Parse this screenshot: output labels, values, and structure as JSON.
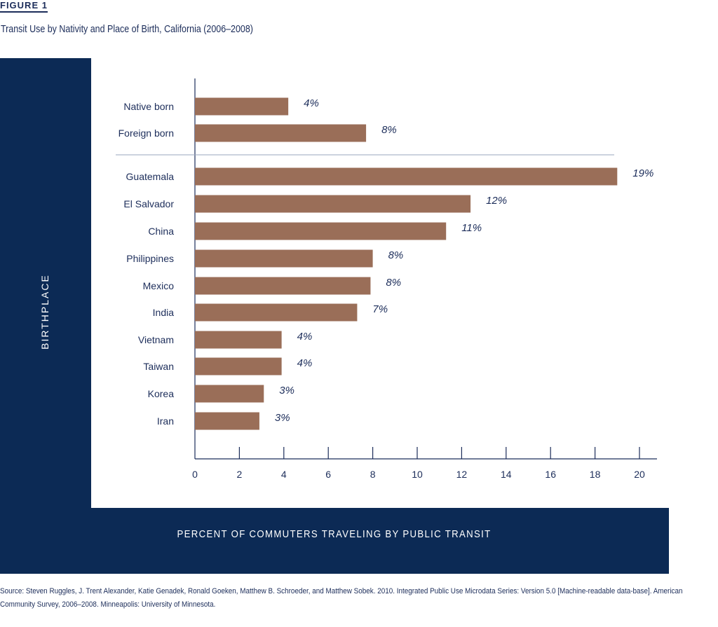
{
  "figure_label": "FIGURE 1",
  "title": "Transit Use by Nativity and Place of Birth, California (2006–2008)",
  "source": "Source: Steven Ruggles, J. Trent Alexander, Katie Genadek, Ronald Goeken, Matthew B. Schroeder, and Matthew Sobek. 2010. Integrated Public Use Microdata Series: Version 5.0 [Machine-readable data-base]. American Community Survey, 2006–2008. Minneapolis: University of Minnesota.",
  "colors": {
    "frame": "#0c2a55",
    "bar": "#9a6e58",
    "text": "#1c2d5a",
    "axis": "#1c2d5a"
  },
  "chart_data": {
    "type": "bar",
    "orientation": "horizontal",
    "xlabel": "PERCENT OF COMMUTERS TRAVELING BY PUBLIC TRANSIT",
    "ylabel": "BIRTHPLACE",
    "xlim": [
      0,
      20
    ],
    "xticks": [
      "0",
      "2",
      "4",
      "6",
      "8",
      "10",
      "12",
      "14",
      "16",
      "18",
      "20"
    ],
    "groups": [
      {
        "categories": [
          "Native born",
          "Foreign born"
        ],
        "values": [
          4.2,
          7.7
        ],
        "labels": [
          "4%",
          "8%"
        ]
      },
      {
        "categories": [
          "Guatemala",
          "El Salvador",
          "China",
          "Philippines",
          "Mexico",
          "India",
          "Vietnam",
          "Taiwan",
          "Korea",
          "Iran"
        ],
        "values": [
          19,
          12.4,
          11.3,
          8,
          7.9,
          7.3,
          3.9,
          3.9,
          3.1,
          2.9
        ],
        "labels": [
          "19%",
          "12%",
          "11%",
          "8%",
          "8%",
          "7%",
          "4%",
          "4%",
          "3%",
          "3%"
        ]
      }
    ],
    "grid": false,
    "legend": "none"
  }
}
